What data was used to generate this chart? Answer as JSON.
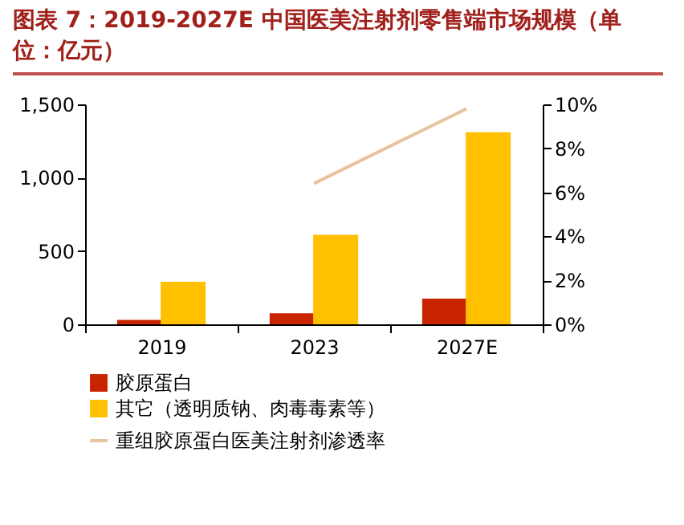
{
  "chart_data": {
    "type": "bar",
    "title": "图表 7：2019-2027E 中国医美注射剂零售端市场规模（单位：亿元）",
    "categories": [
      "2019",
      "2023",
      "2027E"
    ],
    "series": [
      {
        "name": "胶原蛋白",
        "color": "#c82400",
        "values": [
          30,
          75,
          175
        ]
      },
      {
        "name": "其它（透明质钠、肉毒毒素等）",
        "color": "#ffc000",
        "values": [
          290,
          610,
          1310
        ]
      },
      {
        "name": "重组胶原蛋白医美注射剂渗透率",
        "type": "line",
        "axis": "y2",
        "color": "#e8c39e",
        "values": [
          null,
          6.4,
          9.8
        ]
      }
    ],
    "ylim": [
      0,
      1500
    ],
    "yticks": [
      0,
      {
        "value": 500,
        "label": "500"
      },
      {
        "value": 1000,
        "label": "1,000"
      },
      {
        "value": 1500,
        "label": "1,500"
      }
    ],
    "y2lim": [
      0,
      10
    ],
    "y2ticks": [
      {
        "value": 0,
        "label": "0%"
      },
      {
        "value": 2,
        "label": "2%"
      },
      {
        "value": 4,
        "label": "4%"
      },
      {
        "value": 6,
        "label": "6%"
      },
      {
        "value": 8,
        "label": "8%"
      },
      {
        "value": 10,
        "label": "10%"
      }
    ],
    "grid": false,
    "legend": "bottom"
  }
}
